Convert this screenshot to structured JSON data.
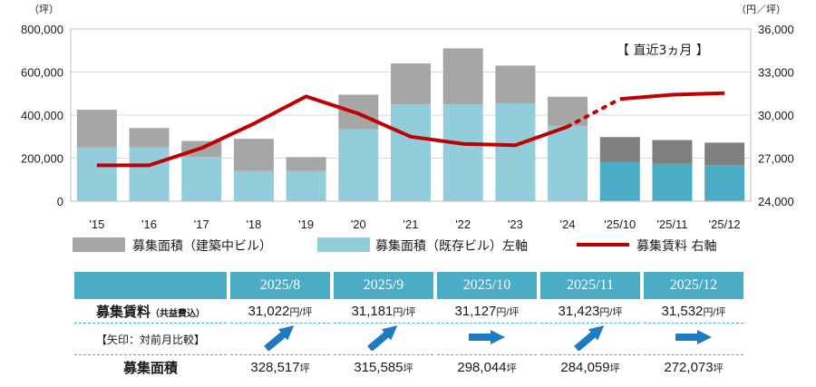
{
  "chart_data": {
    "type": "bar",
    "categories": [
      "'15",
      "'16",
      "'17",
      "'18",
      "'19",
      "'20",
      "'21",
      "'22",
      "'23",
      "'24",
      "'25/10",
      "'25/11",
      "'25/12"
    ],
    "series": [
      {
        "name": "募集面積（建築中ビル）",
        "values": [
          175000,
          90000,
          75000,
          150000,
          65000,
          160000,
          190000,
          260000,
          175000,
          135000,
          115000,
          110000,
          105000
        ],
        "color": "#a6a6a6"
      },
      {
        "name": "募集面積（既存ビル）左軸",
        "values": [
          250000,
          250000,
          205000,
          140000,
          140000,
          335000,
          450000,
          450000,
          455000,
          350000,
          183000,
          174000,
          167000
        ],
        "color": "#92cddc"
      },
      {
        "name": "募集賃料 右軸",
        "values": [
          26500,
          26500,
          27700,
          29400,
          31300,
          30100,
          28500,
          28000,
          27900,
          29200,
          31127,
          31423,
          31532
        ],
        "color": "#c00000"
      }
    ],
    "highlight_bars_color": "#4bacc6",
    "highlight_gray_color": "#7f7f7f",
    "y_left": {
      "range": [
        0,
        800000
      ],
      "ticks": [
        "0",
        "200,000",
        "400,000",
        "600,000",
        "800,000"
      ],
      "unit": "（坪）"
    },
    "y_right": {
      "range": [
        24000,
        36000
      ],
      "ticks": [
        "24,000",
        "27,000",
        "30,000",
        "33,000",
        "36,000"
      ],
      "unit": "（円／坪）"
    },
    "annotation": "【 直近3ヵ月 】",
    "legend_position": "bottom"
  },
  "table": {
    "months": [
      "2025/8",
      "2025/9",
      "2025/10",
      "2025/11",
      "2025/12"
    ],
    "rent_label": "募集賃料",
    "rent_label_note": "（共益費込）",
    "rents": [
      "31,022",
      "31,181",
      "31,127",
      "31,423",
      "31,532"
    ],
    "rent_unit": "円/坪",
    "arrow_label": "【矢印：対前月比較】",
    "arrows": [
      "up",
      "up",
      "flat",
      "up",
      "flat"
    ],
    "area_label": "募集面積",
    "areas": [
      "328,517",
      "315,585",
      "298,044",
      "284,059",
      "272,073"
    ],
    "area_unit": "坪"
  }
}
